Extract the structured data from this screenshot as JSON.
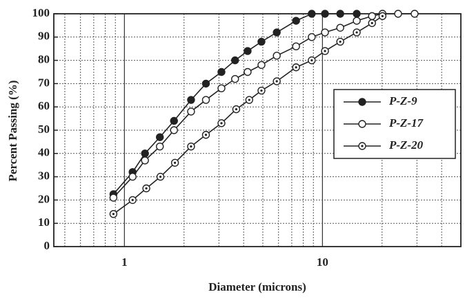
{
  "chart_data": {
    "type": "line",
    "xlabel": "Diameter (microns)",
    "ylabel": "Percent Passing (%)",
    "log_x": true,
    "grid": true,
    "legend": "right",
    "xlim": [
      0.44,
      50
    ],
    "ylim": [
      0,
      100
    ],
    "xticks": [
      1,
      10
    ],
    "xminorticks": [
      0.5,
      0.6,
      0.7,
      0.8,
      0.9,
      2,
      3,
      4,
      5,
      6,
      7,
      8,
      9,
      20,
      30,
      40
    ],
    "yticks": [
      0,
      10,
      20,
      30,
      40,
      50,
      60,
      70,
      80,
      90,
      100
    ],
    "series": [
      {
        "name": "P-Z-9",
        "color": "#222222",
        "marker": "filled",
        "x": [
          0.88,
          1.1,
          1.27,
          1.51,
          1.78,
          2.17,
          2.58,
          3.09,
          3.62,
          4.19,
          4.92,
          5.88,
          7.36,
          8.83,
          10.3,
          12.3,
          14.9
        ],
        "values": [
          22.5,
          32,
          40,
          47,
          54,
          63,
          70,
          75,
          80,
          84,
          88,
          92,
          97,
          100,
          100,
          100,
          100
        ]
      },
      {
        "name": "P-Z-17",
        "color": "#222222",
        "marker": "open",
        "x": [
          0.88,
          1.1,
          1.27,
          1.51,
          1.78,
          2.17,
          2.58,
          3.09,
          3.62,
          4.19,
          4.92,
          5.88,
          7.36,
          8.83,
          10.3,
          12.3,
          14.9,
          17.8,
          20.1,
          24.1,
          29.2
        ],
        "values": [
          21,
          30,
          37,
          43,
          50,
          58,
          63,
          68,
          72,
          75,
          78,
          82,
          86,
          90,
          92,
          94,
          97,
          99,
          100,
          100,
          100
        ]
      },
      {
        "name": "P-Z-20",
        "color": "#222222",
        "marker": "dotted",
        "x": [
          0.88,
          1.1,
          1.29,
          1.52,
          1.8,
          2.17,
          2.58,
          3.09,
          3.67,
          4.27,
          4.92,
          5.88,
          7.36,
          8.83,
          10.3,
          12.3,
          14.9,
          17.8,
          20.1
        ],
        "values": [
          14,
          20,
          25,
          30,
          36,
          43,
          48,
          53,
          59,
          63,
          67,
          71,
          77,
          80,
          84,
          88,
          92,
          96,
          99
        ]
      }
    ]
  }
}
